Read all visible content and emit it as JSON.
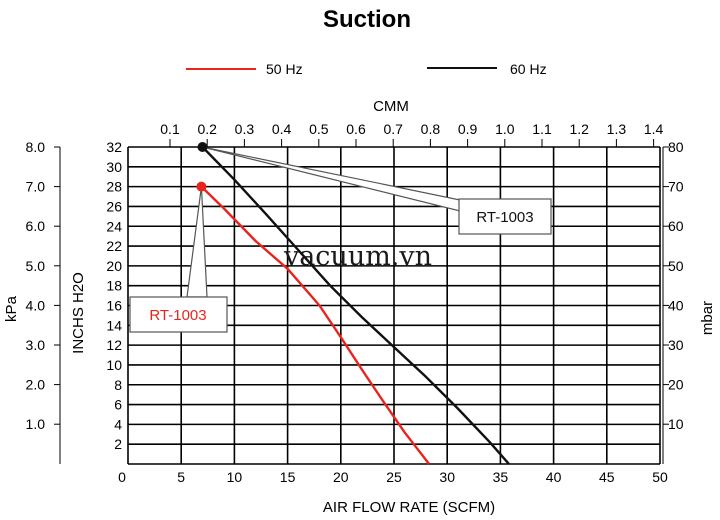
{
  "chart_data": {
    "type": "line",
    "title": "Suction",
    "xlabel": "AIR FLOW RATE (SCFM)",
    "x2label": "CMM",
    "ylabel": "INCHS H2O",
    "ylabel_kpa": "kPa",
    "ylabel_mbar": "mbar",
    "xlim": [
      0,
      50
    ],
    "ylim": [
      0,
      32
    ],
    "grid": true,
    "legend_position": "top-center",
    "x_ticks": [
      "0",
      "5",
      "10",
      "15",
      "20",
      "25",
      "30",
      "35",
      "40",
      "45",
      "50"
    ],
    "x2_ticks": [
      "0.1",
      "0.2",
      "0.3",
      "0.4",
      "0.5",
      "0.6",
      "0.7",
      "0.8",
      "0.9",
      "1.0",
      "1.1",
      "1.2",
      "1.3",
      "1.4"
    ],
    "y_ticks": [
      "2",
      "4",
      "6",
      "8",
      "10",
      "12",
      "14",
      "16",
      "18",
      "20",
      "22",
      "24",
      "26",
      "28",
      "30",
      "32"
    ],
    "kpa_ticks": [
      "1.0",
      "2.0",
      "3.0",
      "4.0",
      "5.0",
      "6.0",
      "7.0",
      "8.0"
    ],
    "mbar_ticks": [
      "10",
      "20",
      "30",
      "40",
      "50",
      "60",
      "70",
      "80"
    ],
    "series": [
      {
        "name": "50 Hz",
        "color": "#e8251d",
        "x": [
          6.9,
          9.0,
          12.0,
          15.0,
          18.0,
          20.0,
          22.0,
          24.0,
          26.0,
          28.3
        ],
        "y": [
          28.0,
          25.8,
          22.5,
          19.7,
          16.0,
          12.8,
          9.5,
          6.3,
          3.2,
          0.0
        ]
      },
      {
        "name": "60 Hz",
        "color": "#111111",
        "x": [
          7.0,
          10.0,
          13.0,
          16.0,
          19.0,
          22.0,
          25.0,
          28.0,
          31.0,
          34.0,
          35.8
        ],
        "y": [
          32.0,
          28.7,
          25.2,
          21.6,
          18.0,
          14.8,
          11.8,
          8.8,
          5.6,
          2.2,
          0.0
        ]
      }
    ],
    "callouts": [
      {
        "text": "RT-1003",
        "series": "50 Hz",
        "color": "#e8251d"
      },
      {
        "text": "RT-1003",
        "series": "60 Hz",
        "color": "#111111"
      }
    ],
    "watermark": "vacuum.vn"
  }
}
